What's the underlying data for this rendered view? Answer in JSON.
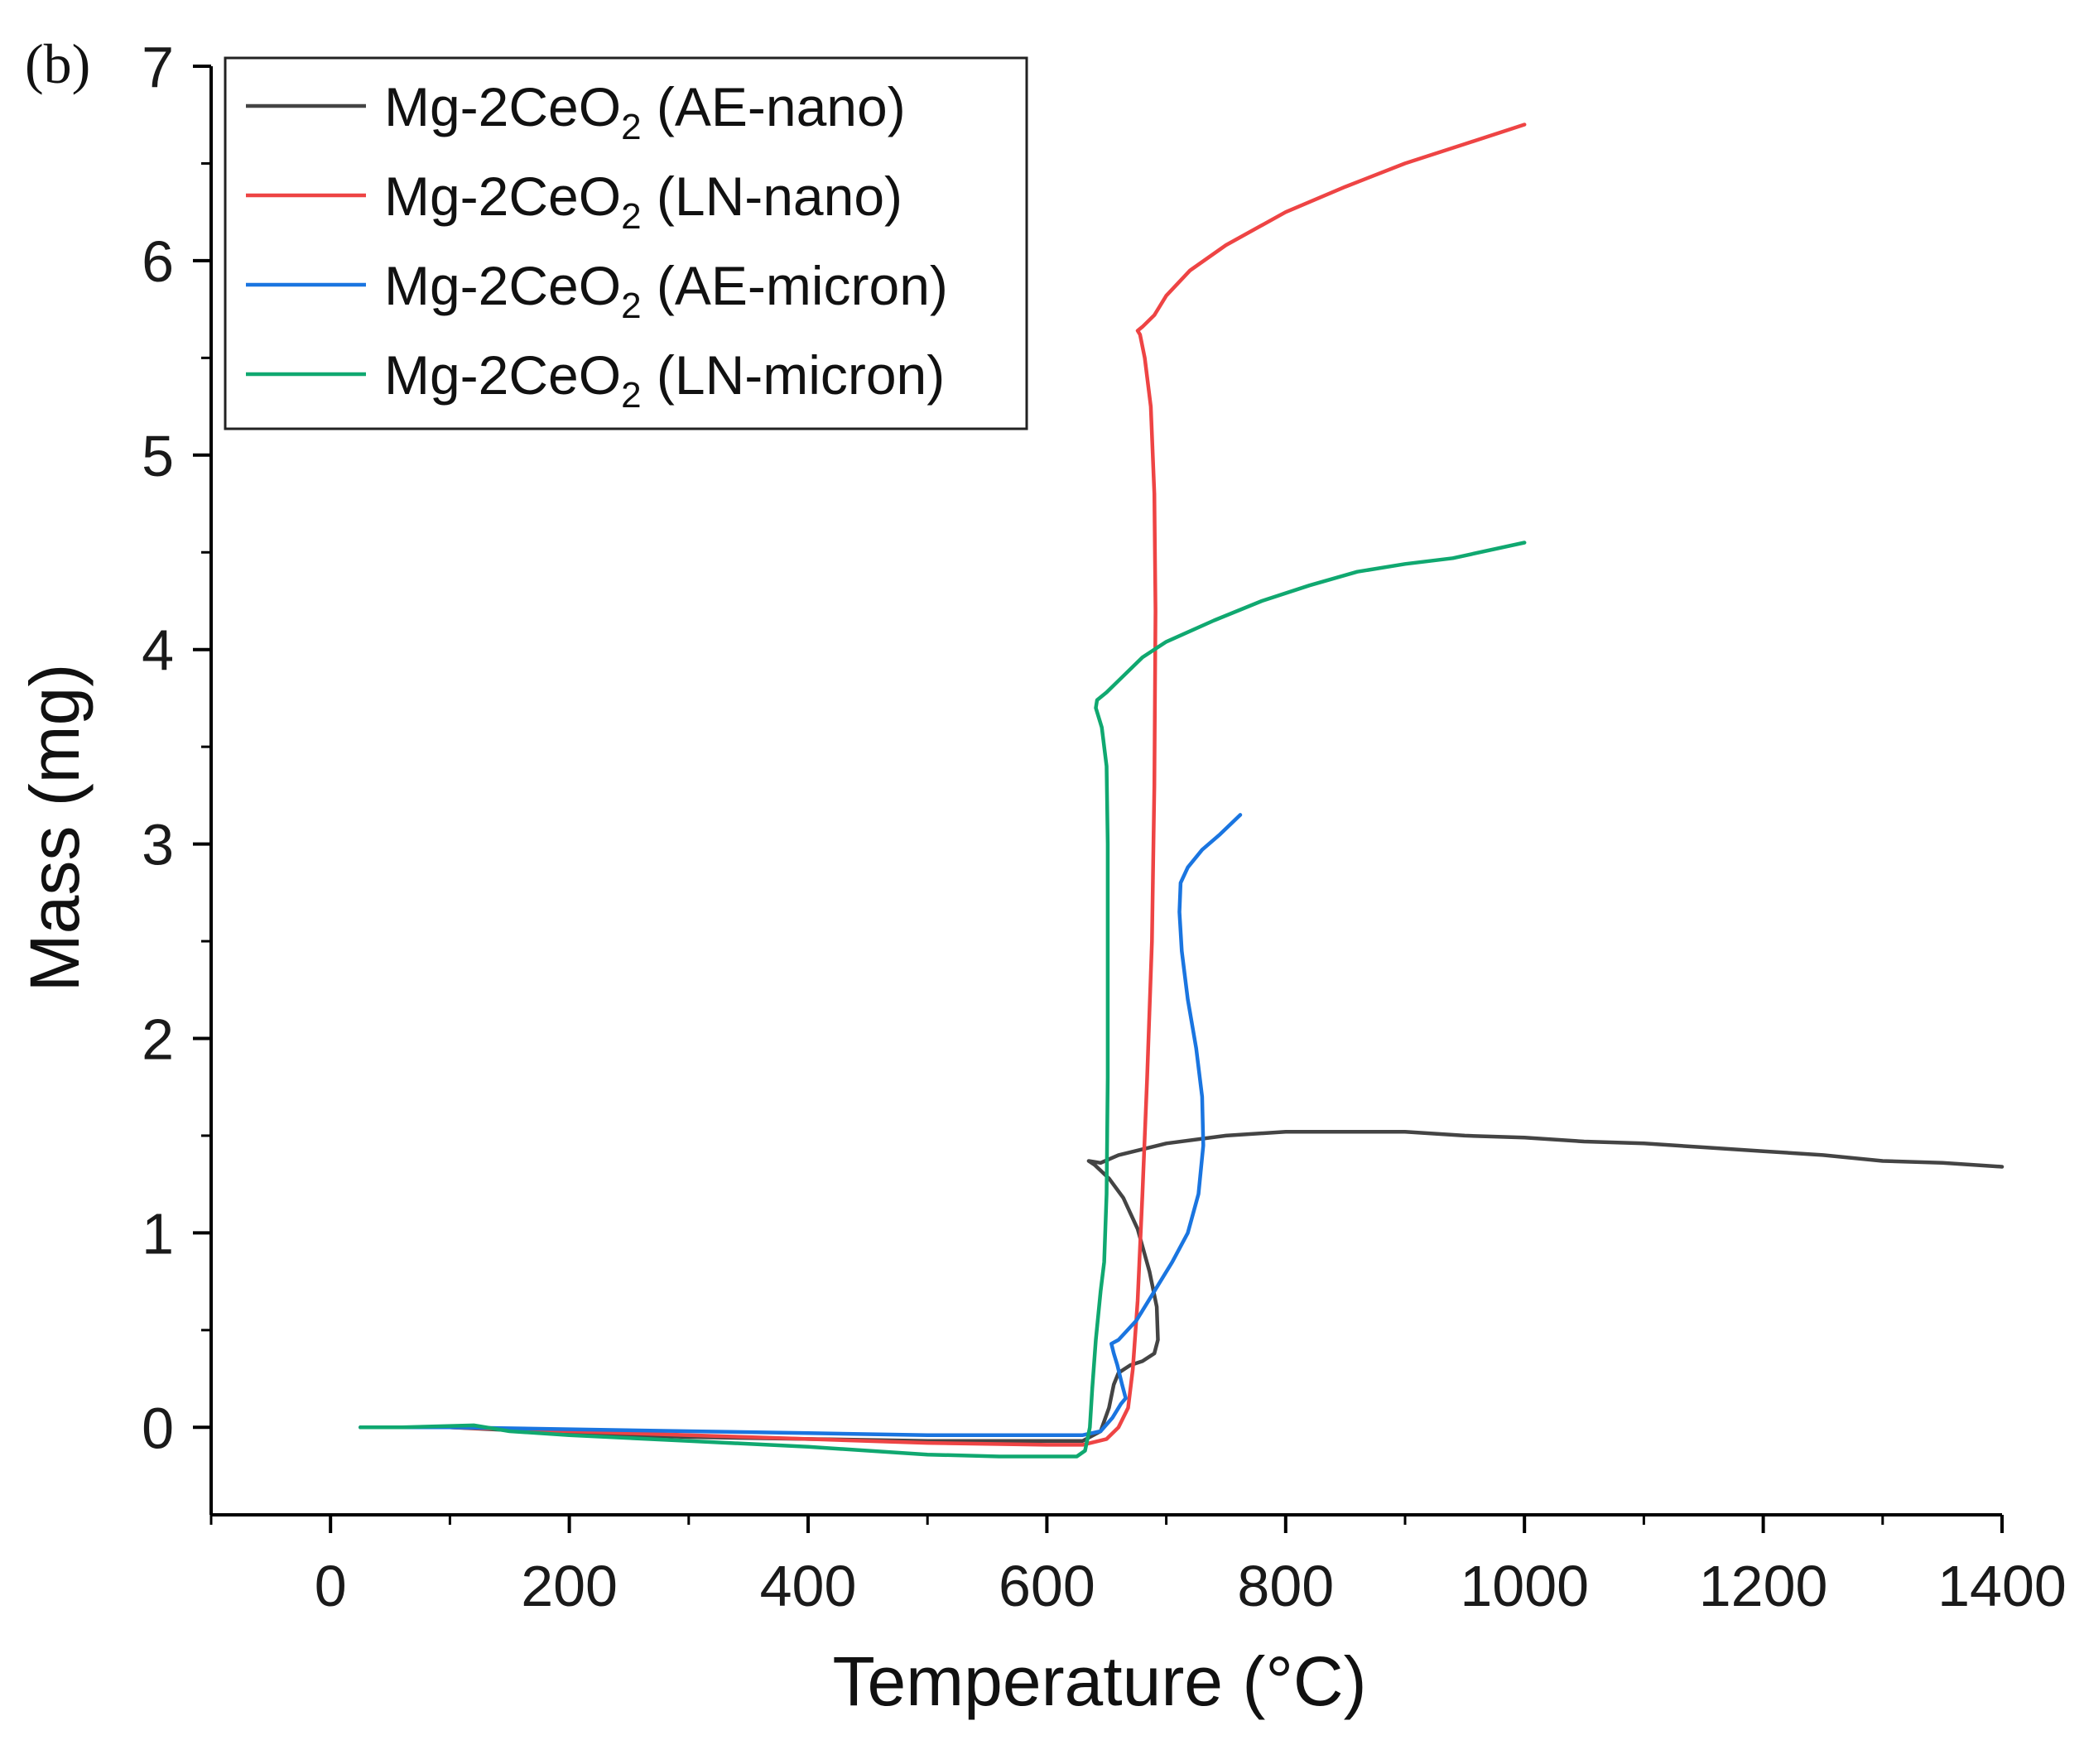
{
  "panel_label": "(b)",
  "chart_data": {
    "type": "line",
    "title": "",
    "xlabel": "Temperature (°C)",
    "ylabel": "Mass (mg)",
    "xlim": [
      -100,
      1400
    ],
    "ylim": [
      -0.45,
      7
    ],
    "xticks": [
      0,
      200,
      400,
      600,
      800,
      1000,
      1200,
      1400
    ],
    "xtick_labels": [
      "0",
      "200",
      "400",
      "600",
      "800",
      "1000",
      "1200",
      "1400"
    ],
    "yticks": [
      0,
      1,
      2,
      3,
      4,
      5,
      6,
      7
    ],
    "ytick_labels": [
      "0",
      "1",
      "2",
      "3",
      "4",
      "5",
      "6",
      "7"
    ],
    "grid": false,
    "legend_position": "top-left",
    "series": [
      {
        "name": "Mg-2CeO2 (AE-nano)",
        "label_main": "Mg-2CeO",
        "label_sub": "2",
        "label_suffix": " (AE-nano)",
        "color": "#444444",
        "points": [
          [
            25,
            0
          ],
          [
            100,
            0
          ],
          [
            200,
            -0.03
          ],
          [
            300,
            -0.05
          ],
          [
            400,
            -0.06
          ],
          [
            500,
            -0.07
          ],
          [
            600,
            -0.07
          ],
          [
            630,
            -0.07
          ],
          [
            645,
            -0.02
          ],
          [
            652,
            0.1
          ],
          [
            656,
            0.22
          ],
          [
            660,
            0.28
          ],
          [
            670,
            0.32
          ],
          [
            680,
            0.34
          ],
          [
            690,
            0.38
          ],
          [
            693,
            0.45
          ],
          [
            692,
            0.62
          ],
          [
            686,
            0.8
          ],
          [
            676,
            1.02
          ],
          [
            664,
            1.18
          ],
          [
            652,
            1.28
          ],
          [
            640,
            1.35
          ],
          [
            635,
            1.37
          ],
          [
            645,
            1.36
          ],
          [
            660,
            1.4
          ],
          [
            700,
            1.46
          ],
          [
            750,
            1.5
          ],
          [
            800,
            1.52
          ],
          [
            850,
            1.52
          ],
          [
            900,
            1.52
          ],
          [
            950,
            1.5
          ],
          [
            1000,
            1.49
          ],
          [
            1050,
            1.47
          ],
          [
            1100,
            1.46
          ],
          [
            1150,
            1.44
          ],
          [
            1200,
            1.42
          ],
          [
            1250,
            1.4
          ],
          [
            1300,
            1.37
          ],
          [
            1350,
            1.36
          ],
          [
            1400,
            1.34
          ]
        ]
      },
      {
        "name": "Mg-2CeO2 (LN-nano)",
        "label_main": "Mg-2CeO",
        "label_sub": "2",
        "label_suffix": " (LN-nano)",
        "color": "#ee4444",
        "points": [
          [
            25,
            0
          ],
          [
            100,
            0
          ],
          [
            200,
            -0.02
          ],
          [
            300,
            -0.04
          ],
          [
            400,
            -0.06
          ],
          [
            500,
            -0.08
          ],
          [
            600,
            -0.09
          ],
          [
            630,
            -0.09
          ],
          [
            650,
            -0.06
          ],
          [
            660,
            0
          ],
          [
            668,
            0.1
          ],
          [
            672,
            0.3
          ],
          [
            676,
            0.65
          ],
          [
            680,
            1.2
          ],
          [
            684,
            1.8
          ],
          [
            688,
            2.5
          ],
          [
            690,
            3.3
          ],
          [
            691,
            4.2
          ],
          [
            690,
            4.8
          ],
          [
            687,
            5.25
          ],
          [
            682,
            5.5
          ],
          [
            678,
            5.62
          ],
          [
            676,
            5.64
          ],
          [
            680,
            5.66
          ],
          [
            690,
            5.72
          ],
          [
            700,
            5.82
          ],
          [
            720,
            5.95
          ],
          [
            750,
            6.08
          ],
          [
            800,
            6.25
          ],
          [
            850,
            6.38
          ],
          [
            900,
            6.5
          ],
          [
            950,
            6.6
          ],
          [
            1000,
            6.7
          ]
        ]
      },
      {
        "name": "Mg-2CeO2 (AE-micron)",
        "label_main": "Mg-2CeO",
        "label_sub": "2",
        "label_suffix": " (AE-micron)",
        "color": "#1a75e0",
        "points": [
          [
            25,
            0
          ],
          [
            100,
            0
          ],
          [
            200,
            -0.01
          ],
          [
            300,
            -0.02
          ],
          [
            400,
            -0.03
          ],
          [
            500,
            -0.04
          ],
          [
            600,
            -0.04
          ],
          [
            630,
            -0.04
          ],
          [
            645,
            -0.02
          ],
          [
            655,
            0.05
          ],
          [
            662,
            0.12
          ],
          [
            666,
            0.15
          ],
          [
            663,
            0.22
          ],
          [
            659,
            0.32
          ],
          [
            656,
            0.38
          ],
          [
            654,
            0.43
          ],
          [
            660,
            0.45
          ],
          [
            675,
            0.55
          ],
          [
            690,
            0.7
          ],
          [
            705,
            0.85
          ],
          [
            718,
            1.0
          ],
          [
            727,
            1.2
          ],
          [
            731,
            1.45
          ],
          [
            730,
            1.7
          ],
          [
            725,
            1.95
          ],
          [
            718,
            2.2
          ],
          [
            713,
            2.45
          ],
          [
            711,
            2.65
          ],
          [
            712,
            2.8
          ],
          [
            718,
            2.88
          ],
          [
            730,
            2.97
          ],
          [
            745,
            3.05
          ],
          [
            762,
            3.15
          ]
        ]
      },
      {
        "name": "Mg-2CeO2 (LN-micron)",
        "label_main": "Mg-2CeO",
        "label_sub": "2",
        "label_suffix": " (LN-micron)",
        "color": "#10a870",
        "points": [
          [
            25,
            0
          ],
          [
            60,
            0
          ],
          [
            120,
            0.01
          ],
          [
            150,
            -0.02
          ],
          [
            200,
            -0.04
          ],
          [
            300,
            -0.07
          ],
          [
            400,
            -0.1
          ],
          [
            500,
            -0.14
          ],
          [
            560,
            -0.15
          ],
          [
            600,
            -0.15
          ],
          [
            625,
            -0.15
          ],
          [
            632,
            -0.12
          ],
          [
            636,
            0
          ],
          [
            638,
            0.2
          ],
          [
            641,
            0.45
          ],
          [
            645,
            0.7
          ],
          [
            648,
            0.85
          ],
          [
            650,
            1.2
          ],
          [
            651,
            1.8
          ],
          [
            651,
            2.4
          ],
          [
            651,
            3.0
          ],
          [
            650,
            3.4
          ],
          [
            646,
            3.6
          ],
          [
            641,
            3.7
          ],
          [
            642,
            3.74
          ],
          [
            650,
            3.78
          ],
          [
            660,
            3.84
          ],
          [
            680,
            3.96
          ],
          [
            700,
            4.04
          ],
          [
            740,
            4.15
          ],
          [
            780,
            4.25
          ],
          [
            820,
            4.33
          ],
          [
            860,
            4.4
          ],
          [
            900,
            4.44
          ],
          [
            940,
            4.47
          ],
          [
            1000,
            4.55
          ]
        ]
      }
    ]
  }
}
